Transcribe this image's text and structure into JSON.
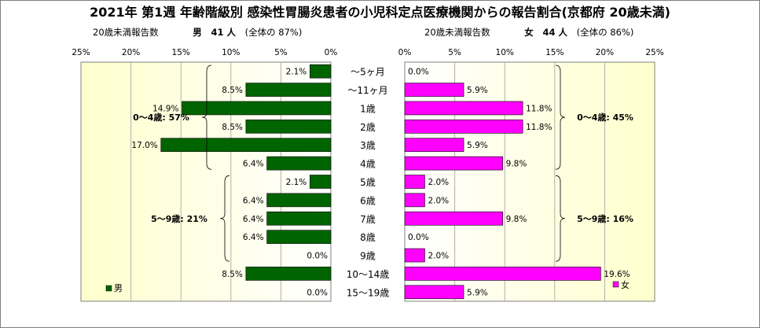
{
  "title": "2021年 第1週 年齢階級別 感染性胃腸炎患者の小児科定点医療機関からの報告割合(京都府 20歳未満)",
  "left_header": {
    "label": "20歳未満報告数",
    "sex": "男",
    "count": "41 人",
    "share": "(全体の  87%)"
  },
  "right_header": {
    "label": "20歳未満報告数",
    "sex": "女",
    "count": "44 人",
    "share": "(全体の  86%)"
  },
  "colors": {
    "male": "#006400",
    "female": "#ff00ff",
    "plot_bg": "#ffffcc"
  },
  "chart_data": [
    {
      "type": "bar",
      "orientation": "horizontal",
      "direction": "right-to-left",
      "series": [
        {
          "name": "男",
          "values": [
            2.1,
            8.5,
            14.9,
            8.5,
            17.0,
            6.4,
            2.1,
            6.4,
            6.4,
            6.4,
            0.0,
            8.5,
            0.0
          ]
        }
      ],
      "value_labels": [
        "2.1%",
        "8.5%",
        "14.9%",
        "8.5%",
        "17.0%",
        "6.4%",
        "2.1%",
        "6.4%",
        "6.4%",
        "6.4%",
        "0.0%",
        "8.5%",
        "0.0%"
      ],
      "xlim": [
        0,
        25
      ],
      "ticks": [
        "0%",
        "5%",
        "10%",
        "15%",
        "20%",
        "25%"
      ],
      "groups": [
        {
          "label": "0～4歳: 57%",
          "from": 0,
          "to": 5
        },
        {
          "label": "5～9歳: 21%",
          "from": 6,
          "to": 10
        }
      ],
      "legend": "bottom-left"
    },
    {
      "type": "bar",
      "orientation": "horizontal",
      "direction": "left-to-right",
      "series": [
        {
          "name": "女",
          "values": [
            0.0,
            5.9,
            11.8,
            11.8,
            5.9,
            9.8,
            2.0,
            2.0,
            9.8,
            0.0,
            2.0,
            19.6,
            5.9
          ]
        }
      ],
      "value_labels": [
        "0.0%",
        "5.9%",
        "11.8%",
        "11.8%",
        "5.9%",
        "9.8%",
        "2.0%",
        "2.0%",
        "9.8%",
        "0.0%",
        "2.0%",
        "19.6%",
        "5.9%"
      ],
      "xlim": [
        0,
        25
      ],
      "ticks": [
        "0%",
        "5%",
        "10%",
        "15%",
        "20%",
        "25%"
      ],
      "groups": [
        {
          "label": "0～4歳: 45%",
          "from": 0,
          "to": 5
        },
        {
          "label": "5～9歳: 16%",
          "from": 6,
          "to": 10
        }
      ],
      "legend": "bottom-right"
    }
  ],
  "categories": [
    "～5ヶ月",
    "～11ヶ月",
    "1歳",
    "2歳",
    "3歳",
    "4歳",
    "5歳",
    "6歳",
    "7歳",
    "8歳",
    "9歳",
    "10～14歳",
    "15～19歳"
  ]
}
